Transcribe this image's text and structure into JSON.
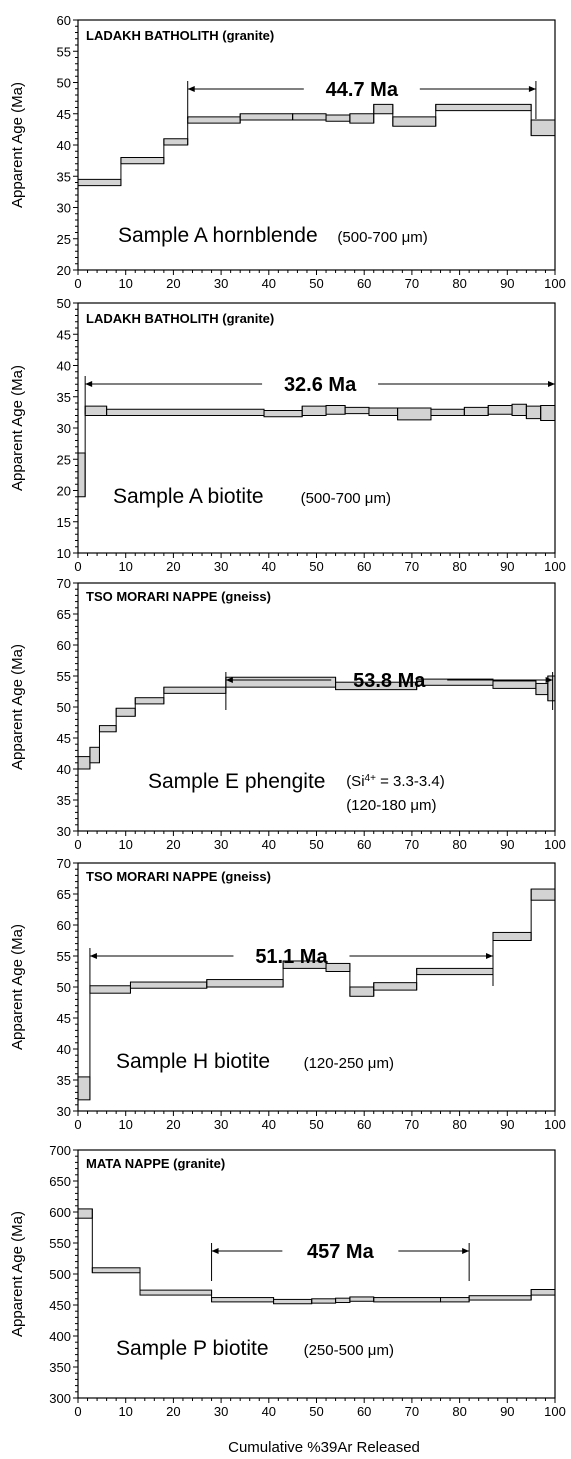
{
  "figure": {
    "x_axis_label": "Cumulative %39Ar Released",
    "y_axis_label": "Apparent Age (Ma)"
  },
  "colors": {
    "step_fill": "#d3d3d3",
    "stroke": "#000000"
  },
  "chart_data": [
    {
      "type": "step-spectrum",
      "title": "LADAKH BATHOLITH (granite)",
      "plateau_age": "44.7 Ma",
      "plateau_range": [
        23,
        96
      ],
      "sample": "Sample A hornblende",
      "sample_note": "(500-700 μm)",
      "ylabel": "Apparent Age (Ma)",
      "xlabel": "",
      "xlim": [
        0,
        100
      ],
      "ylim": [
        20,
        60
      ],
      "yticks": [
        20,
        25,
        30,
        35,
        40,
        45,
        50,
        55,
        60
      ],
      "xticks": [
        0,
        10,
        20,
        30,
        40,
        50,
        60,
        70,
        80,
        90,
        100
      ],
      "steps": [
        {
          "x0": 0,
          "x1": 9,
          "lo": 33.5,
          "hi": 34.5
        },
        {
          "x0": 9,
          "x1": 18,
          "lo": 37,
          "hi": 38
        },
        {
          "x0": 18,
          "x1": 23,
          "lo": 40,
          "hi": 41
        },
        {
          "x0": 23,
          "x1": 34,
          "lo": 43.5,
          "hi": 44.5
        },
        {
          "x0": 34,
          "x1": 45,
          "lo": 44,
          "hi": 45
        },
        {
          "x0": 45,
          "x1": 52,
          "lo": 44,
          "hi": 45
        },
        {
          "x0": 52,
          "x1": 57,
          "lo": 43.8,
          "hi": 44.8
        },
        {
          "x0": 57,
          "x1": 62,
          "lo": 43.5,
          "hi": 45
        },
        {
          "x0": 62,
          "x1": 66,
          "lo": 45,
          "hi": 46.5
        },
        {
          "x0": 66,
          "x1": 75,
          "lo": 43,
          "hi": 44.5
        },
        {
          "x0": 75,
          "x1": 95,
          "lo": 45.5,
          "hi": 46.5
        },
        {
          "x0": 95,
          "x1": 100,
          "lo": 41.5,
          "hi": 44
        }
      ]
    },
    {
      "type": "step-spectrum",
      "title": "LADAKH BATHOLITH (granite)",
      "plateau_age": "32.6 Ma",
      "plateau_range": [
        1.5,
        100
      ],
      "sample": "Sample A biotite",
      "sample_note": "(500-700 μm)",
      "ylabel": "Apparent Age (Ma)",
      "xlabel": "",
      "xlim": [
        0,
        100
      ],
      "ylim": [
        10,
        50
      ],
      "yticks": [
        10,
        15,
        20,
        25,
        30,
        35,
        40,
        45,
        50
      ],
      "xticks": [
        0,
        10,
        20,
        30,
        40,
        50,
        60,
        70,
        80,
        90,
        100
      ],
      "steps": [
        {
          "x0": 0,
          "x1": 1.5,
          "lo": 19,
          "hi": 26
        },
        {
          "x0": 1.5,
          "x1": 6,
          "lo": 32,
          "hi": 33.5
        },
        {
          "x0": 6,
          "x1": 39,
          "lo": 32,
          "hi": 33
        },
        {
          "x0": 39,
          "x1": 47,
          "lo": 31.8,
          "hi": 32.8
        },
        {
          "x0": 47,
          "x1": 52,
          "lo": 32,
          "hi": 33.5
        },
        {
          "x0": 52,
          "x1": 56,
          "lo": 32.2,
          "hi": 33.6
        },
        {
          "x0": 56,
          "x1": 61,
          "lo": 32.3,
          "hi": 33.3
        },
        {
          "x0": 61,
          "x1": 67,
          "lo": 32,
          "hi": 33.2
        },
        {
          "x0": 67,
          "x1": 74,
          "lo": 31.3,
          "hi": 33.2
        },
        {
          "x0": 74,
          "x1": 81,
          "lo": 32,
          "hi": 33
        },
        {
          "x0": 81,
          "x1": 86,
          "lo": 32,
          "hi": 33.3
        },
        {
          "x0": 86,
          "x1": 91,
          "lo": 32.2,
          "hi": 33.6
        },
        {
          "x0": 91,
          "x1": 94,
          "lo": 32,
          "hi": 33.8
        },
        {
          "x0": 94,
          "x1": 97,
          "lo": 31.5,
          "hi": 33.5
        },
        {
          "x0": 97,
          "x1": 100,
          "lo": 31.2,
          "hi": 33.6
        }
      ]
    },
    {
      "type": "step-spectrum",
      "title": "TSO MORARI NAPPE (gneiss)",
      "plateau_age": "53.8 Ma",
      "plateau_range": [
        31,
        99.5
      ],
      "sample": "Sample E phengite",
      "sample_note": "(Si4+ = 3.3-3.4)",
      "sample_note2": "(120-180 μm)",
      "ylabel": "Apparent Age (Ma)",
      "xlabel": "",
      "xlim": [
        0,
        100
      ],
      "ylim": [
        30,
        70
      ],
      "yticks": [
        30,
        35,
        40,
        45,
        50,
        55,
        60,
        65,
        70
      ],
      "xticks": [
        0,
        10,
        20,
        30,
        40,
        50,
        60,
        70,
        80,
        90,
        100
      ],
      "steps": [
        {
          "x0": 0,
          "x1": 2.5,
          "lo": 40,
          "hi": 42
        },
        {
          "x0": 2.5,
          "x1": 4.5,
          "lo": 41,
          "hi": 43.5
        },
        {
          "x0": 4.5,
          "x1": 8,
          "lo": 46,
          "hi": 47
        },
        {
          "x0": 8,
          "x1": 12,
          "lo": 48.5,
          "hi": 49.8
        },
        {
          "x0": 12,
          "x1": 18,
          "lo": 50.5,
          "hi": 51.5
        },
        {
          "x0": 18,
          "x1": 31,
          "lo": 52.2,
          "hi": 53.2
        },
        {
          "x0": 31,
          "x1": 54,
          "lo": 53.2,
          "hi": 54.8
        },
        {
          "x0": 54,
          "x1": 71,
          "lo": 52.8,
          "hi": 54
        },
        {
          "x0": 71,
          "x1": 87,
          "lo": 53.5,
          "hi": 54.5
        },
        {
          "x0": 87,
          "x1": 96,
          "lo": 53,
          "hi": 54.2
        },
        {
          "x0": 96,
          "x1": 98.5,
          "lo": 52,
          "hi": 53.8
        },
        {
          "x0": 98.5,
          "x1": 100,
          "lo": 51,
          "hi": 55
        }
      ]
    },
    {
      "type": "step-spectrum",
      "title": "TSO MORARI NAPPE (gneiss)",
      "plateau_age": "51.1 Ma",
      "plateau_range": [
        2.5,
        87
      ],
      "sample": "Sample H biotite",
      "sample_note": "(120-250 μm)",
      "ylabel": "Apparent Age (Ma)",
      "xlabel": "",
      "xlim": [
        0,
        100
      ],
      "ylim": [
        30,
        70
      ],
      "yticks": [
        30,
        35,
        40,
        45,
        50,
        55,
        60,
        65,
        70
      ],
      "xticks": [
        0,
        10,
        20,
        30,
        40,
        50,
        60,
        70,
        80,
        90,
        100
      ],
      "steps": [
        {
          "x0": 0,
          "x1": 2.5,
          "lo": 31.8,
          "hi": 35.5
        },
        {
          "x0": 2.5,
          "x1": 11,
          "lo": 49,
          "hi": 50.2
        },
        {
          "x0": 11,
          "x1": 27,
          "lo": 49.8,
          "hi": 50.8
        },
        {
          "x0": 27,
          "x1": 43,
          "lo": 50,
          "hi": 51.2
        },
        {
          "x0": 43,
          "x1": 52,
          "lo": 53,
          "hi": 54.2
        },
        {
          "x0": 52,
          "x1": 57,
          "lo": 52.5,
          "hi": 53.8
        },
        {
          "x0": 57,
          "x1": 62,
          "lo": 48.5,
          "hi": 50
        },
        {
          "x0": 62,
          "x1": 71,
          "lo": 49.5,
          "hi": 50.7
        },
        {
          "x0": 71,
          "x1": 87,
          "lo": 52,
          "hi": 53
        },
        {
          "x0": 87,
          "x1": 95,
          "lo": 57.5,
          "hi": 58.8
        },
        {
          "x0": 95,
          "x1": 100,
          "lo": 64,
          "hi": 65.8
        }
      ]
    },
    {
      "type": "step-spectrum",
      "title": "MATA NAPPE (granite)",
      "plateau_age": "457 Ma",
      "plateau_range": [
        28,
        82
      ],
      "sample": "Sample P biotite",
      "sample_note": "(250-500 μm)",
      "ylabel": "Apparent Age (Ma)",
      "xlabel": "Cumulative %39Ar Released",
      "xlim": [
        0,
        100
      ],
      "ylim": [
        300,
        700
      ],
      "yticks": [
        300,
        350,
        400,
        450,
        500,
        550,
        600,
        650,
        700
      ],
      "xticks": [
        0,
        10,
        20,
        30,
        40,
        50,
        60,
        70,
        80,
        90,
        100
      ],
      "steps": [
        {
          "x0": 0,
          "x1": 3,
          "lo": 590,
          "hi": 605
        },
        {
          "x0": 3,
          "x1": 13,
          "lo": 502,
          "hi": 510
        },
        {
          "x0": 13,
          "x1": 28,
          "lo": 466,
          "hi": 474
        },
        {
          "x0": 28,
          "x1": 41,
          "lo": 455,
          "hi": 462
        },
        {
          "x0": 41,
          "x1": 49,
          "lo": 452,
          "hi": 459
        },
        {
          "x0": 49,
          "x1": 54,
          "lo": 453,
          "hi": 460
        },
        {
          "x0": 54,
          "x1": 57,
          "lo": 454,
          "hi": 461
        },
        {
          "x0": 57,
          "x1": 62,
          "lo": 456,
          "hi": 463
        },
        {
          "x0": 62,
          "x1": 76,
          "lo": 455,
          "hi": 462
        },
        {
          "x0": 76,
          "x1": 82,
          "lo": 455,
          "hi": 462
        },
        {
          "x0": 82,
          "x1": 95,
          "lo": 458,
          "hi": 465
        },
        {
          "x0": 95,
          "x1": 100,
          "lo": 466,
          "hi": 475
        }
      ]
    }
  ]
}
